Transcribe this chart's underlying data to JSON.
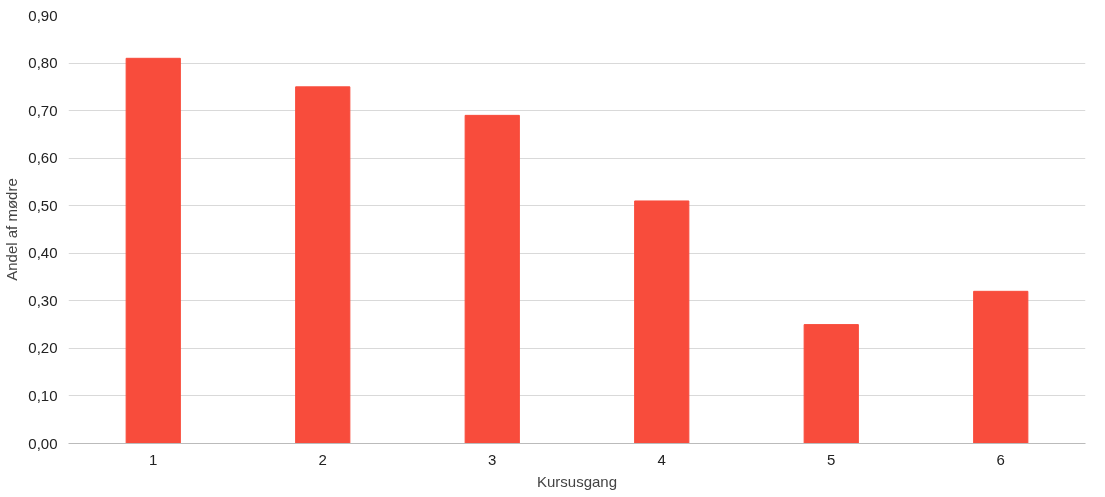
{
  "chart_data": {
    "type": "bar",
    "xlabel": "Kursusgang",
    "ylabel": "Andel af mødre",
    "categories": [
      "1",
      "2",
      "3",
      "4",
      "5",
      "6"
    ],
    "values": [
      0.81,
      0.75,
      0.69,
      0.51,
      0.25,
      0.32
    ],
    "color": "#f84c3c",
    "ylim": [
      0,
      0.9
    ],
    "yticks": [
      {
        "value": 0,
        "label": "0,00"
      },
      {
        "value": 0.1,
        "label": "0,10"
      },
      {
        "value": 0.2,
        "label": "0,20"
      },
      {
        "value": 0.3,
        "label": "0,30"
      },
      {
        "value": 0.4,
        "label": "0,40"
      },
      {
        "value": 0.5,
        "label": "0,50"
      },
      {
        "value": 0.6,
        "label": "0,60"
      },
      {
        "value": 0.7,
        "label": "0,70"
      },
      {
        "value": 0.8,
        "label": "0,80"
      },
      {
        "value": 0.9,
        "label": "0,90"
      }
    ],
    "grid": "y"
  }
}
